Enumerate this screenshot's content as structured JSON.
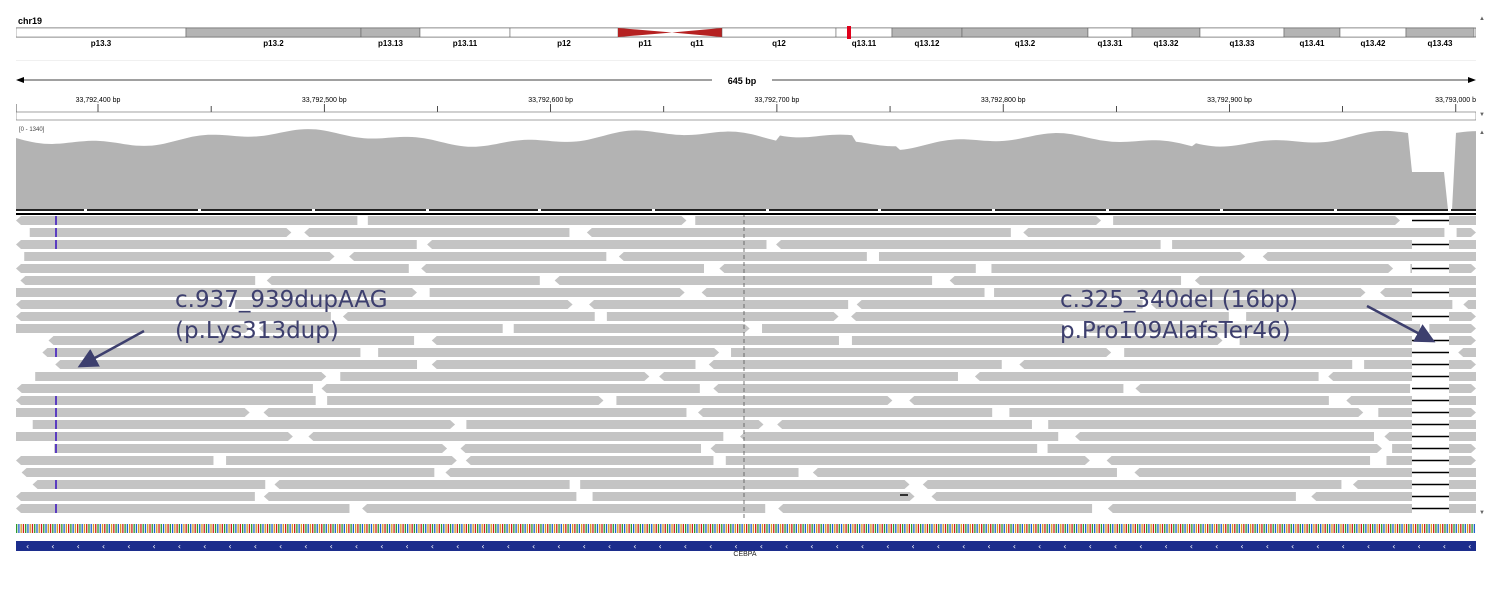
{
  "chromosome": "chr19",
  "ideogram": {
    "bands": [
      {
        "label": "p13.3",
        "start": 0,
        "end": 170,
        "shade": "white"
      },
      {
        "label": "p13.2",
        "start": 170,
        "end": 345,
        "shade": "gray"
      },
      {
        "label": "p13.13",
        "start": 345,
        "end": 404,
        "shade": "gray"
      },
      {
        "label": "p13.11",
        "start": 404,
        "end": 494,
        "shade": "white"
      },
      {
        "label": "p12",
        "start": 494,
        "end": 602,
        "shade": "white"
      },
      {
        "label": "p11",
        "start": 602,
        "end": 656,
        "shade": "centromere"
      },
      {
        "label": "q11",
        "start": 656,
        "end": 706,
        "shade": "centromere"
      },
      {
        "label": "q12",
        "start": 706,
        "end": 820,
        "shade": "white"
      },
      {
        "label": "q13.11",
        "start": 820,
        "end": 876,
        "shade": "white"
      },
      {
        "label": "q13.12",
        "start": 876,
        "end": 946,
        "shade": "gray"
      },
      {
        "label": "q13.2",
        "start": 946,
        "end": 1072,
        "shade": "gray"
      },
      {
        "label": "q13.31",
        "start": 1072,
        "end": 1116,
        "shade": "white"
      },
      {
        "label": "q13.32",
        "start": 1116,
        "end": 1184,
        "shade": "gray"
      },
      {
        "label": "q13.33",
        "start": 1184,
        "end": 1268,
        "shade": "white"
      },
      {
        "label": "q13.41",
        "start": 1268,
        "end": 1324,
        "shade": "gray"
      },
      {
        "label": "q13.42",
        "start": 1324,
        "end": 1390,
        "shade": "white"
      },
      {
        "label": "q13.43",
        "start": 1390,
        "end": 1458,
        "shade": "gray"
      }
    ],
    "colors": {
      "gray": "#b4b4b4",
      "white": "#ffffff",
      "centromere": "#b52121",
      "marker": "#e0001b"
    }
  },
  "ruler": {
    "span_label": "645 bp",
    "ticks": [
      "33,792,400 bp",
      "33,792,500 bp",
      "33,792,600 bp",
      "33,792,700 bp",
      "33,792,800 bp",
      "33,792,900 bp",
      "33,793,000 b"
    ]
  },
  "coverage": {
    "range_label": "[0 - 1340]",
    "color": "#b3b3b3"
  },
  "reads": {
    "color": "#c4c4c4"
  },
  "annotations": {
    "left": {
      "line1": "c.937_939dupAAG",
      "line2": "(p.Lys313dup)"
    },
    "right": {
      "line1": "c.325_340del (16bp)",
      "line2": "p.Pro109AlafsTer46)"
    },
    "arrow_color": "#3d3f6e"
  },
  "gene": {
    "name": "CEBPA",
    "color": "#1c2d8c",
    "strand_glyph": "‹"
  }
}
